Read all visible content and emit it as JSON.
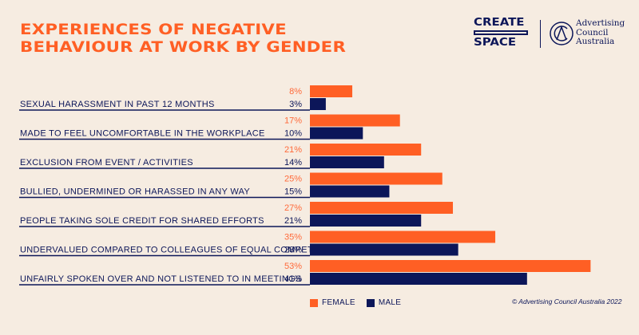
{
  "title_lines": [
    "EXPERIENCES OF NEGATIVE",
    "BEHAVIOUR AT WORK BY GENDER"
  ],
  "logos": {
    "create_space": [
      "CREATE",
      "SPACE"
    ],
    "council": [
      "Advertising",
      "Council",
      "Australia"
    ]
  },
  "colors": {
    "female": "#ff5f24",
    "male": "#0c1659",
    "background": "#f6ece1"
  },
  "copyright": "© Advertising Council Australia 2022",
  "chart_data": {
    "type": "bar",
    "orientation": "horizontal",
    "title": "EXPERIENCES OF NEGATIVE BEHAVIOUR AT WORK BY GENDER",
    "categories": [
      "SEXUAL HARASSMENT IN PAST 12 MONTHS",
      "MADE TO FEEL UNCOMFORTABLE IN THE WORKPLACE",
      "EXCLUSION FROM EVENT / ACTIVITIES",
      "BULLIED, UNDERMINED OR HARASSED IN ANY WAY",
      "PEOPLE TAKING SOLE CREDIT FOR SHARED EFFORTS",
      "UNDERVALUED COMPARED TO COLLEAGUES OF EQUAL COMPETENCE",
      "UNFAIRLY SPOKEN OVER AND NOT LISTENED TO IN MEETINGS"
    ],
    "series": [
      {
        "name": "FEMALE",
        "values": [
          8,
          17,
          21,
          25,
          27,
          35,
          53
        ]
      },
      {
        "name": "MALE",
        "values": [
          3,
          10,
          14,
          15,
          21,
          28,
          41
        ]
      }
    ],
    "value_suffix": "%",
    "xlabel": "",
    "ylabel": "",
    "legend": "bottom-center",
    "grid": false
  }
}
